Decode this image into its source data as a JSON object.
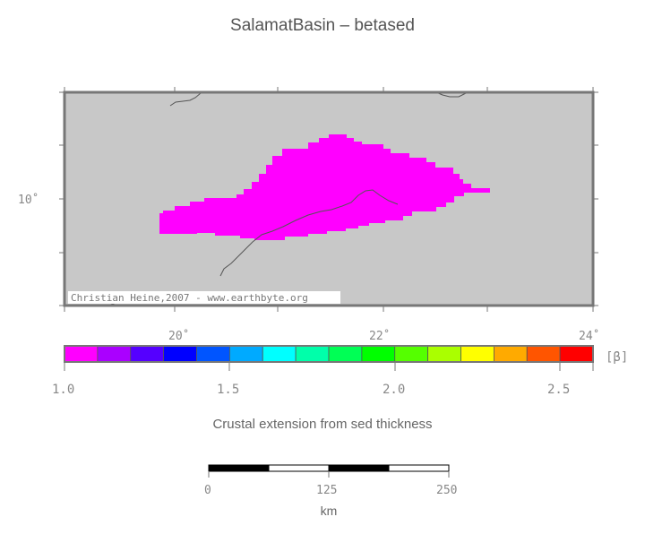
{
  "title": "SalamatBasin – betased",
  "map": {
    "x_ticks": [
      "20˚",
      "22˚",
      "24˚"
    ],
    "y_ticks": [
      "10˚"
    ],
    "credit": "Christian Heine,2007 - www.earthbyte.org",
    "land_color": "#c8c8c8",
    "basin_color": "#ff00ff"
  },
  "colorbar": {
    "label": "[β]",
    "ticks": [
      "1.0",
      "1.5",
      "2.0",
      "2.5"
    ],
    "colors": [
      "#ff00ff",
      "#aa00ff",
      "#5500ff",
      "#0000ff",
      "#0055ff",
      "#00aaff",
      "#00ffff",
      "#00ffaa",
      "#00ff55",
      "#00ff00",
      "#55ff00",
      "#aaff00",
      "#ffff00",
      "#ffaa00",
      "#ff5500",
      "#ff0000"
    ]
  },
  "caption": "Crustal extension from sed thickness",
  "scalebar": {
    "ticks": [
      "0",
      "125",
      "250"
    ],
    "unit": "km"
  }
}
